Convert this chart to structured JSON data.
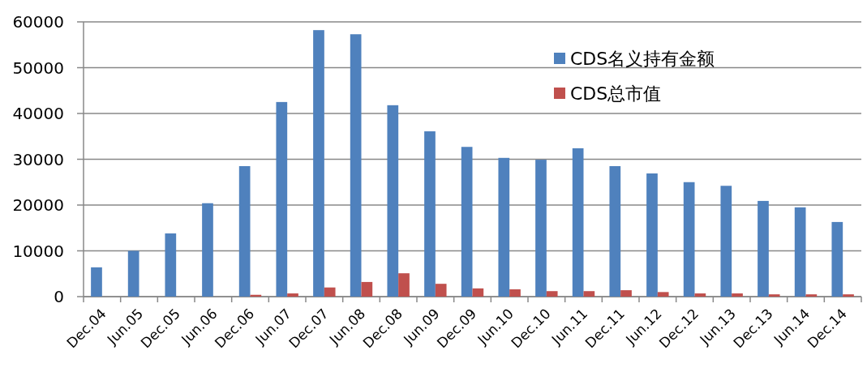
{
  "chart_data": {
    "type": "bar",
    "categories": [
      "Dec.04",
      "Jun.05",
      "Dec.05",
      "Jun.06",
      "Dec.06",
      "Jun.07",
      "Dec.07",
      "Jun.08",
      "Dec.08",
      "Jun.09",
      "Dec.09",
      "Jun.10",
      "Dec.10",
      "Jun.11",
      "Dec.11",
      "Jun.12",
      "Dec.12",
      "Jun.13",
      "Dec.13",
      "Jun.14",
      "Dec.14"
    ],
    "series": [
      {
        "name": "CDS名义持有金额",
        "color": "#4f81bd",
        "values": [
          6400,
          10000,
          13800,
          20400,
          28500,
          42500,
          58200,
          57300,
          41800,
          36100,
          32700,
          30300,
          29900,
          32400,
          28500,
          26900,
          25000,
          24200,
          20900,
          19500,
          16300
        ]
      },
      {
        "name": "CDS总市值",
        "color": "#c0504d",
        "values": [
          null,
          null,
          null,
          null,
          400,
          700,
          2000,
          3200,
          5100,
          2800,
          1800,
          1600,
          1200,
          1200,
          1400,
          1000,
          700,
          700,
          500,
          500,
          500
        ]
      }
    ],
    "ylim": [
      0,
      60000
    ],
    "yticks": [
      0,
      10000,
      20000,
      30000,
      40000,
      50000,
      60000
    ],
    "grid": "y",
    "legend": "top right"
  }
}
